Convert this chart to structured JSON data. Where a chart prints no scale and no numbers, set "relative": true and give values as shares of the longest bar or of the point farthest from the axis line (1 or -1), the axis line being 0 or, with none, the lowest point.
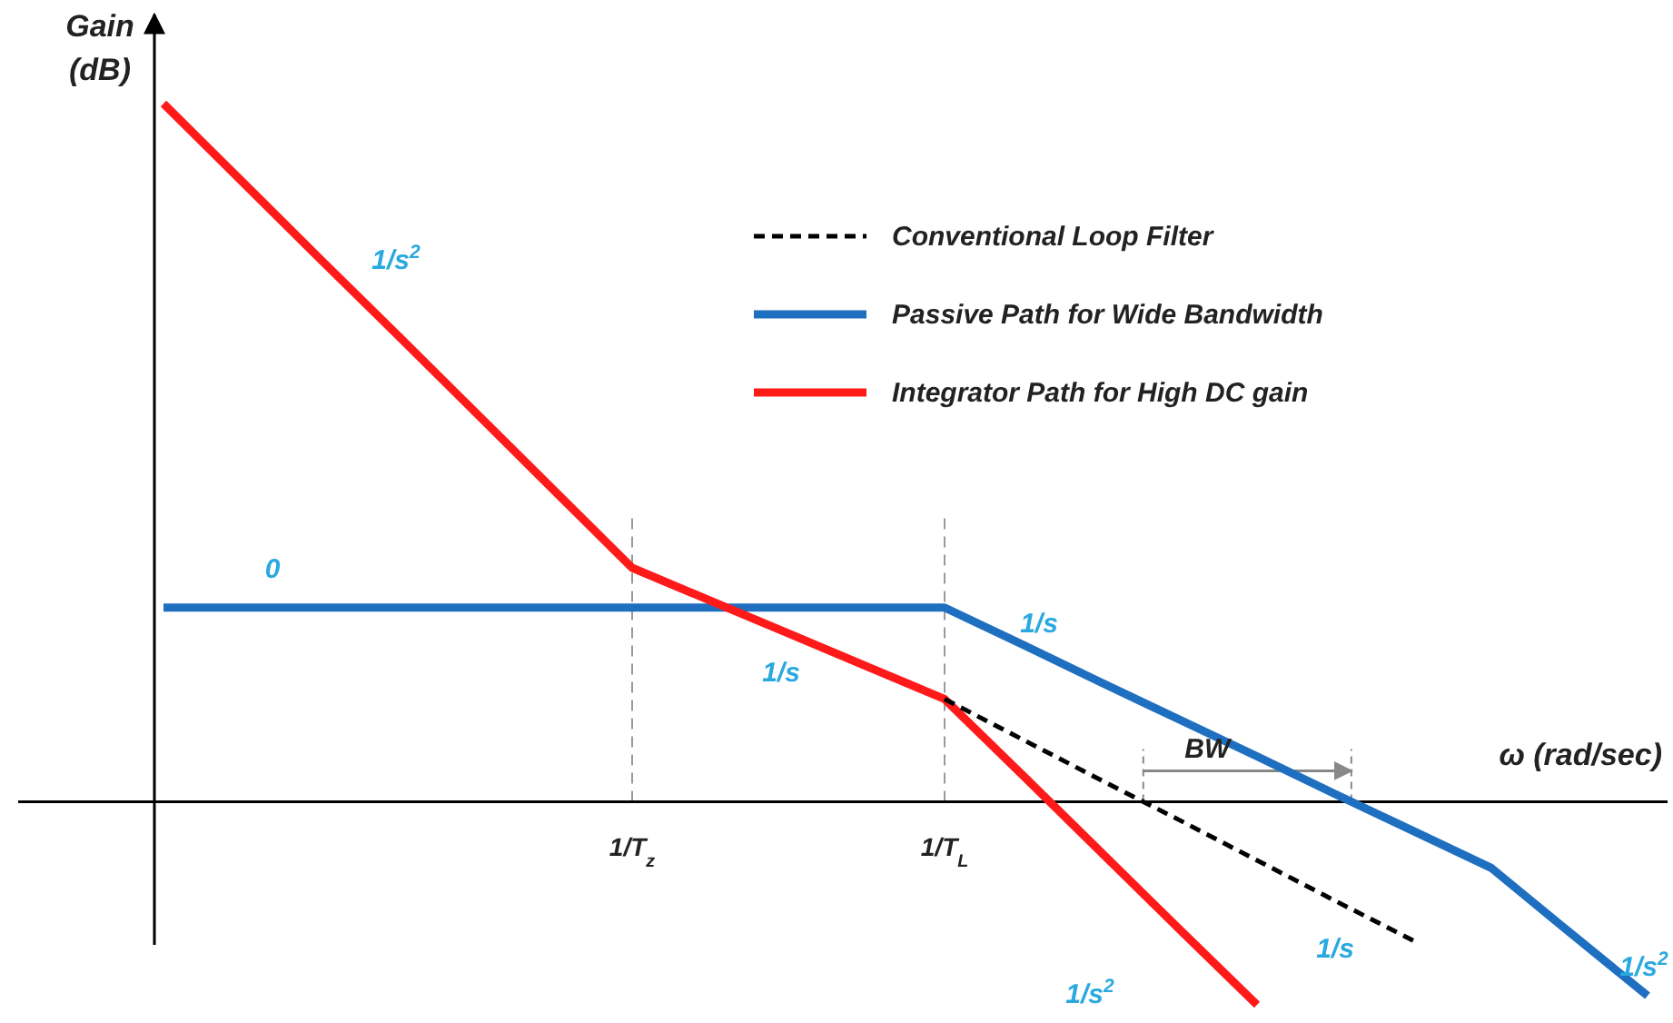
{
  "chart_data": {
    "type": "line",
    "relative": true,
    "xlabel": "ω (rad/sec)",
    "ylabel": "Gain\n(dB)",
    "categories": [
      null,
      null,
      null,
      null,
      null,
      null,
      "1/T$_{z}$",
      null,
      null,
      null,
      "1/T$_{L}$",
      null,
      null,
      null,
      null,
      null,
      null,
      null,
      null,
      null
    ],
    "series": [
      {
        "name": "Conventional Loop Filter",
        "color": "#000000",
        "line_style": "dashed",
        "values": [
          null,
          null,
          null,
          null,
          null,
          null,
          null,
          null,
          null,
          null,
          0.147,
          0.089,
          0.031,
          -0.026,
          -0.084,
          -0.142,
          -0.199,
          null,
          null,
          null
        ]
      },
      {
        "name": "Passive Path for Wide Bandwidth",
        "color": "#1f6fc0",
        "line_style": "solid",
        "values": [
          0.278,
          0.278,
          0.278,
          0.278,
          0.278,
          0.278,
          0.278,
          0.278,
          0.278,
          0.278,
          0.278,
          0.225,
          0.171,
          0.118,
          0.065,
          0.011,
          -0.042,
          -0.095,
          -0.187,
          -0.278
        ]
      },
      {
        "name": "Integrator Path for High DC gain",
        "color": "#ff1a1a",
        "line_style": "solid",
        "values": [
          1,
          0.889,
          0.778,
          0.668,
          0.557,
          0.446,
          0.335,
          0.288,
          0.241,
          0.194,
          0.147,
          0.038,
          -0.072,
          -0.182,
          -0.291,
          null,
          null,
          null,
          null,
          null
        ]
      }
    ],
    "ref_lines": [
      {
        "axis": "x",
        "value": "1/T$_{z}$",
        "color": "#999999",
        "line_style": "dashed"
      },
      {
        "axis": "x",
        "value": "1/T$_{L}$",
        "color": "#999999",
        "line_style": "dashed"
      }
    ],
    "annotations": [
      "1/s$^{2}$",
      "0",
      "1/s",
      "1/s",
      "1/s",
      "1/s$^{2}$",
      "1/s$^{2}$",
      "BW"
    ],
    "legend": "top right"
  }
}
